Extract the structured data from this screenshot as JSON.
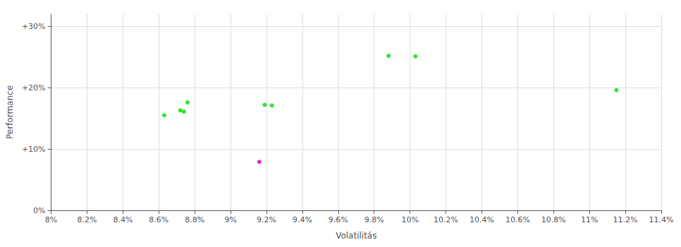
{
  "chart_data": {
    "type": "scatter",
    "xlabel": "Volatilitás",
    "ylabel": "Performance",
    "xlim": [
      0.08,
      0.114
    ],
    "ylim": [
      0.0,
      0.32
    ],
    "xticks": [
      {
        "value": 0.08,
        "label": "8%"
      },
      {
        "value": 0.082,
        "label": "8.2%"
      },
      {
        "value": 0.084,
        "label": "8.4%"
      },
      {
        "value": 0.086,
        "label": "8.6%"
      },
      {
        "value": 0.088,
        "label": "8.8%"
      },
      {
        "value": 0.09,
        "label": "9%"
      },
      {
        "value": 0.092,
        "label": "9.2%"
      },
      {
        "value": 0.094,
        "label": "9.4%"
      },
      {
        "value": 0.096,
        "label": "9.6%"
      },
      {
        "value": 0.098,
        "label": "9.8%"
      },
      {
        "value": 0.1,
        "label": "10%"
      },
      {
        "value": 0.102,
        "label": "10.2%"
      },
      {
        "value": 0.104,
        "label": "10.4%"
      },
      {
        "value": 0.106,
        "label": "10.6%"
      },
      {
        "value": 0.108,
        "label": "10.8%"
      },
      {
        "value": 0.11,
        "label": "11%"
      },
      {
        "value": 0.112,
        "label": "11.2%"
      },
      {
        "value": 0.114,
        "label": "11.4%"
      }
    ],
    "yticks": [
      {
        "value": 0.0,
        "label": "0%"
      },
      {
        "value": 0.1,
        "label": "+10%"
      },
      {
        "value": 0.2,
        "label": "+20%"
      },
      {
        "value": 0.3,
        "label": "+30%"
      }
    ],
    "grid": true,
    "series": [
      {
        "color": "#00dd00",
        "values": [
          [
            0.0863,
            0.155
          ],
          [
            0.0872,
            0.163
          ],
          [
            0.0874,
            0.161
          ],
          [
            0.0876,
            0.176
          ],
          [
            0.0919,
            0.172
          ],
          [
            0.0923,
            0.171
          ],
          [
            0.0988,
            0.252
          ],
          [
            0.1003,
            0.251
          ],
          [
            0.1115,
            0.196
          ]
        ]
      },
      {
        "color": "#cc00cc",
        "values": [
          [
            0.0916,
            0.079
          ]
        ]
      }
    ]
  }
}
